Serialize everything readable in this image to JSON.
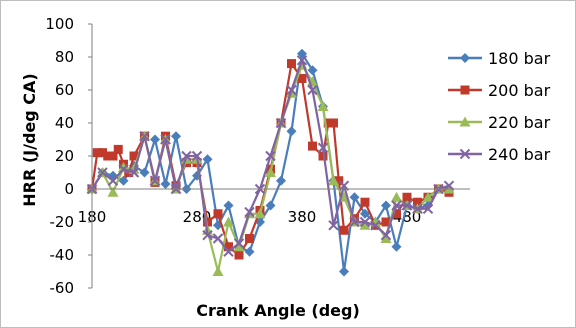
{
  "chart_data": {
    "type": "line",
    "title": "",
    "xlabel": "Crank Angle (deg)",
    "ylabel": "HRR (J/deg CA)",
    "xlim": [
      180,
      540
    ],
    "ylim": [
      -60,
      100
    ],
    "xticks": [
      180,
      280,
      380,
      480
    ],
    "yticks": [
      -60,
      -40,
      -20,
      0,
      20,
      40,
      60,
      80,
      100
    ],
    "grid": false,
    "legend": "right",
    "series": [
      {
        "name": "180 bar",
        "color": "#4a7ebb",
        "marker": "diamond",
        "x": [
          180,
          190,
          200,
          210,
          220,
          230,
          240,
          250,
          260,
          270,
          280,
          290,
          300,
          310,
          320,
          330,
          340,
          350,
          360,
          370,
          380,
          390,
          400,
          410,
          420,
          430,
          440,
          450,
          460,
          470,
          480,
          490,
          500,
          510,
          520
        ],
        "y": [
          0,
          10,
          8,
          5,
          14,
          10,
          30,
          3,
          32,
          0,
          8,
          18,
          -22,
          -10,
          -35,
          -38,
          -20,
          -10,
          5,
          35,
          82,
          72,
          50,
          5,
          -50,
          -5,
          -15,
          -20,
          -10,
          -35,
          -10,
          -12,
          -10,
          0,
          0
        ]
      },
      {
        "name": "200 bar",
        "color": "#c0392b",
        "marker": "square",
        "x": [
          180,
          185,
          190,
          195,
          200,
          205,
          210,
          215,
          220,
          230,
          240,
          250,
          260,
          270,
          280,
          290,
          300,
          310,
          320,
          330,
          340,
          350,
          360,
          370,
          380,
          390,
          400,
          405,
          410,
          415,
          420,
          430,
          440,
          450,
          460,
          470,
          480,
          490,
          500,
          510,
          520
        ],
        "y": [
          0,
          22,
          22,
          20,
          20,
          24,
          15,
          10,
          20,
          32,
          4,
          32,
          2,
          16,
          16,
          -20,
          -15,
          -35,
          -40,
          -30,
          -13,
          12,
          40,
          76,
          67,
          26,
          20,
          40,
          40,
          5,
          -25,
          -18,
          -8,
          -22,
          -20,
          -15,
          -5,
          -8,
          -5,
          0,
          -2
        ]
      },
      {
        "name": "220 bar",
        "color": "#9bbb59",
        "marker": "triangle",
        "x": [
          180,
          190,
          200,
          210,
          220,
          230,
          240,
          250,
          260,
          270,
          280,
          290,
          300,
          310,
          320,
          330,
          340,
          350,
          360,
          370,
          380,
          390,
          400,
          410,
          420,
          430,
          440,
          450,
          460,
          470,
          480,
          490,
          500,
          510,
          520
        ],
        "y": [
          0,
          10,
          -2,
          13,
          12,
          32,
          5,
          30,
          0,
          18,
          18,
          -25,
          -50,
          -20,
          -35,
          -15,
          -15,
          10,
          40,
          58,
          75,
          65,
          50,
          5,
          -5,
          -20,
          -22,
          -20,
          -30,
          -5,
          -10,
          -12,
          -5,
          0,
          0
        ]
      },
      {
        "name": "240 bar",
        "color": "#8064a2",
        "marker": "x",
        "x": [
          180,
          190,
          200,
          210,
          220,
          230,
          240,
          250,
          260,
          270,
          280,
          290,
          300,
          310,
          320,
          330,
          340,
          350,
          360,
          370,
          380,
          390,
          400,
          410,
          420,
          430,
          440,
          450,
          460,
          470,
          480,
          490,
          500,
          510,
          520
        ],
        "y": [
          0,
          10,
          5,
          12,
          10,
          32,
          5,
          30,
          0,
          20,
          20,
          -28,
          -30,
          -38,
          -33,
          -14,
          0,
          20,
          40,
          60,
          78,
          60,
          25,
          -22,
          2,
          -20,
          -20,
          -22,
          -28,
          -10,
          -10,
          -12,
          -12,
          0,
          2
        ]
      }
    ]
  }
}
